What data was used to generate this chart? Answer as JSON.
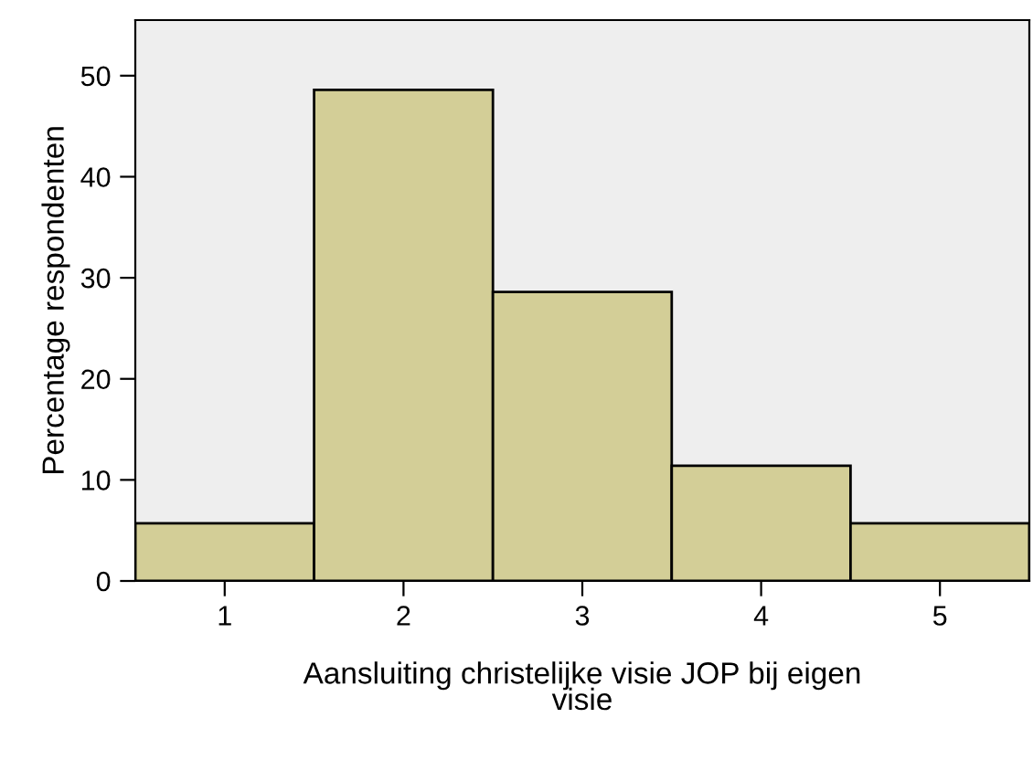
{
  "chart_data": {
    "type": "bar",
    "xlabel": "Aansluiting christelijke visie JOP bij eigen\nvisie",
    "ylabel": "Percentage respondenten",
    "categories": [
      "1",
      "2",
      "3",
      "4",
      "5"
    ],
    "values": [
      5.7,
      48.6,
      28.6,
      11.4,
      5.7
    ],
    "color": "#d3ce97",
    "ylim": [
      0,
      55.5
    ],
    "yticks": [
      0,
      10,
      20,
      30,
      40,
      50
    ],
    "grid": false,
    "legend": false
  }
}
